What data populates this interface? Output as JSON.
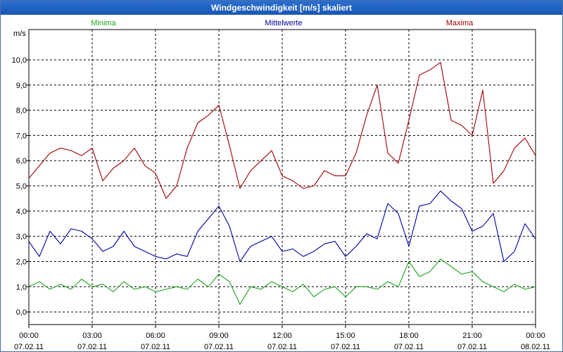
{
  "window": {
    "title": "Windgeschwindigkeit [m/s] skaliert"
  },
  "colors": {
    "minima": "#1aa31a",
    "mittelwerte": "#0000a0",
    "maxima": "#a00000",
    "grid": "#000000"
  },
  "chart_data": {
    "type": "line",
    "title": "Windgeschwindigkeit [m/s] skaliert",
    "ylabel": "m/s",
    "ylim": [
      -0.5,
      11.2
    ],
    "xlim": [
      0,
      24
    ],
    "yticks": [
      0,
      1,
      2,
      3,
      4,
      5,
      6,
      7,
      8,
      9,
      10
    ],
    "ytick_labels": [
      "0,0",
      "1,0",
      "2,0",
      "3,0",
      "4,0",
      "5,0",
      "6,0",
      "7,0",
      "8,0",
      "9,0",
      "10,0"
    ],
    "xticks": [
      0,
      3,
      6,
      9,
      12,
      15,
      18,
      21,
      24
    ],
    "xtick_labels": [
      {
        "time": "00:00",
        "date": "07.02.11"
      },
      {
        "time": "03:00",
        "date": "07.02.11"
      },
      {
        "time": "06:00",
        "date": "07.02.11"
      },
      {
        "time": "09:00",
        "date": "07.02.11"
      },
      {
        "time": "12:00",
        "date": "07.02.11"
      },
      {
        "time": "15:00",
        "date": "07.02.11"
      },
      {
        "time": "18:00",
        "date": "07.02.11"
      },
      {
        "time": "21:00",
        "date": "07.02.11"
      },
      {
        "time": "00:00",
        "date": "08.02.11"
      }
    ],
    "legend": [
      "Minima",
      "Mittelwerte",
      "Maxima"
    ],
    "grid": true,
    "series": [
      {
        "name": "Minima",
        "x": [
          0,
          0.5,
          1,
          1.5,
          2,
          2.5,
          3,
          3.5,
          4,
          4.5,
          5,
          5.5,
          6,
          6.5,
          7,
          7.5,
          8,
          8.5,
          9,
          9.5,
          10,
          10.5,
          11,
          11.5,
          12,
          12.5,
          13,
          13.5,
          14,
          14.5,
          15,
          15.5,
          16,
          16.5,
          17,
          17.5,
          18,
          18.5,
          19,
          19.5,
          20,
          20.5,
          21,
          21.5,
          22,
          22.5,
          23,
          23.5,
          24
        ],
        "values": [
          1.0,
          1.2,
          0.9,
          1.1,
          0.9,
          1.3,
          1.0,
          1.1,
          0.8,
          1.2,
          0.9,
          1.0,
          0.8,
          0.9,
          1.0,
          0.9,
          1.3,
          1.0,
          1.5,
          1.2,
          0.3,
          1.0,
          0.9,
          1.2,
          1.0,
          0.8,
          1.1,
          0.6,
          0.9,
          1.0,
          0.6,
          1.0,
          1.0,
          0.9,
          1.2,
          1.0,
          2.0,
          1.4,
          1.6,
          2.1,
          1.8,
          1.5,
          1.6,
          1.2,
          1.0,
          0.8,
          1.1,
          0.9,
          1.0
        ]
      },
      {
        "name": "Mittelwerte",
        "x": [
          0,
          0.5,
          1,
          1.5,
          2,
          2.5,
          3,
          3.5,
          4,
          4.5,
          5,
          5.5,
          6,
          6.5,
          7,
          7.5,
          8,
          8.5,
          9,
          9.5,
          10,
          10.5,
          11,
          11.5,
          12,
          12.5,
          13,
          13.5,
          14,
          14.5,
          15,
          15.5,
          16,
          16.5,
          17,
          17.5,
          18,
          18.5,
          19,
          19.5,
          20,
          20.5,
          21,
          21.5,
          22,
          22.5,
          23,
          23.5,
          24
        ],
        "values": [
          2.8,
          2.2,
          3.2,
          2.7,
          3.3,
          3.2,
          2.9,
          2.4,
          2.6,
          3.2,
          2.6,
          2.4,
          2.2,
          2.1,
          2.3,
          2.2,
          3.2,
          3.7,
          4.2,
          3.4,
          2.0,
          2.6,
          2.8,
          3.0,
          2.4,
          2.5,
          2.2,
          2.4,
          2.7,
          2.8,
          2.2,
          2.6,
          3.1,
          2.9,
          4.3,
          3.9,
          2.6,
          4.2,
          4.3,
          4.8,
          4.4,
          4.1,
          3.2,
          3.4,
          3.9,
          2.0,
          2.4,
          3.5,
          2.9
        ]
      },
      {
        "name": "Maxima",
        "x": [
          0,
          0.5,
          1,
          1.5,
          2,
          2.5,
          3,
          3.5,
          4,
          4.5,
          5,
          5.5,
          6,
          6.5,
          7,
          7.5,
          8,
          8.5,
          9,
          9.5,
          10,
          10.5,
          11,
          11.5,
          12,
          12.5,
          13,
          13.5,
          14,
          14.5,
          15,
          15.5,
          16,
          16.5,
          17,
          17.5,
          18,
          18.5,
          19,
          19.5,
          20,
          20.5,
          21,
          21.5,
          22,
          22.5,
          23,
          23.5,
          24
        ],
        "values": [
          5.3,
          5.8,
          6.3,
          6.5,
          6.4,
          6.2,
          6.5,
          5.2,
          5.7,
          6.0,
          6.5,
          5.8,
          5.5,
          4.5,
          5.0,
          6.5,
          7.5,
          7.8,
          8.2,
          6.6,
          4.9,
          5.6,
          6.0,
          6.4,
          5.4,
          5.2,
          4.9,
          5.0,
          5.6,
          5.4,
          5.4,
          6.3,
          7.8,
          9.0,
          6.3,
          5.9,
          7.6,
          9.4,
          9.6,
          9.9,
          7.6,
          7.4,
          7.0,
          8.8,
          5.1,
          5.6,
          6.5,
          6.9,
          6.2
        ]
      }
    ]
  }
}
